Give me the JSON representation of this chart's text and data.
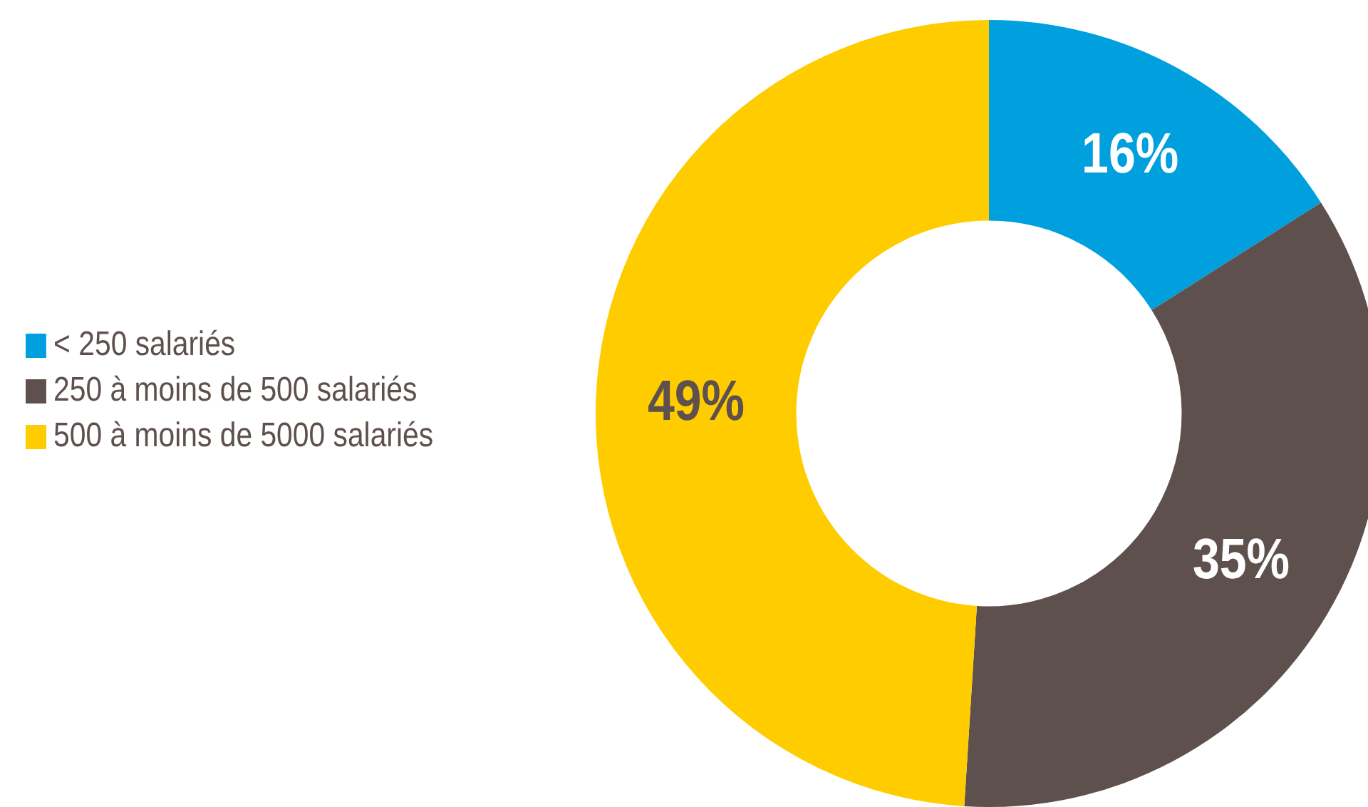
{
  "chart_data": {
    "type": "donut",
    "categories": [
      "< 250 salariés",
      "250 à moins de 500 salariés",
      "500 à moins de 5000 salariés"
    ],
    "values": [
      16,
      35,
      49
    ],
    "colors": [
      "#00a0df",
      "#5e514d",
      "#ffcc00"
    ],
    "value_labels": [
      "16%",
      "35%",
      "49%"
    ],
    "legend": "left"
  }
}
